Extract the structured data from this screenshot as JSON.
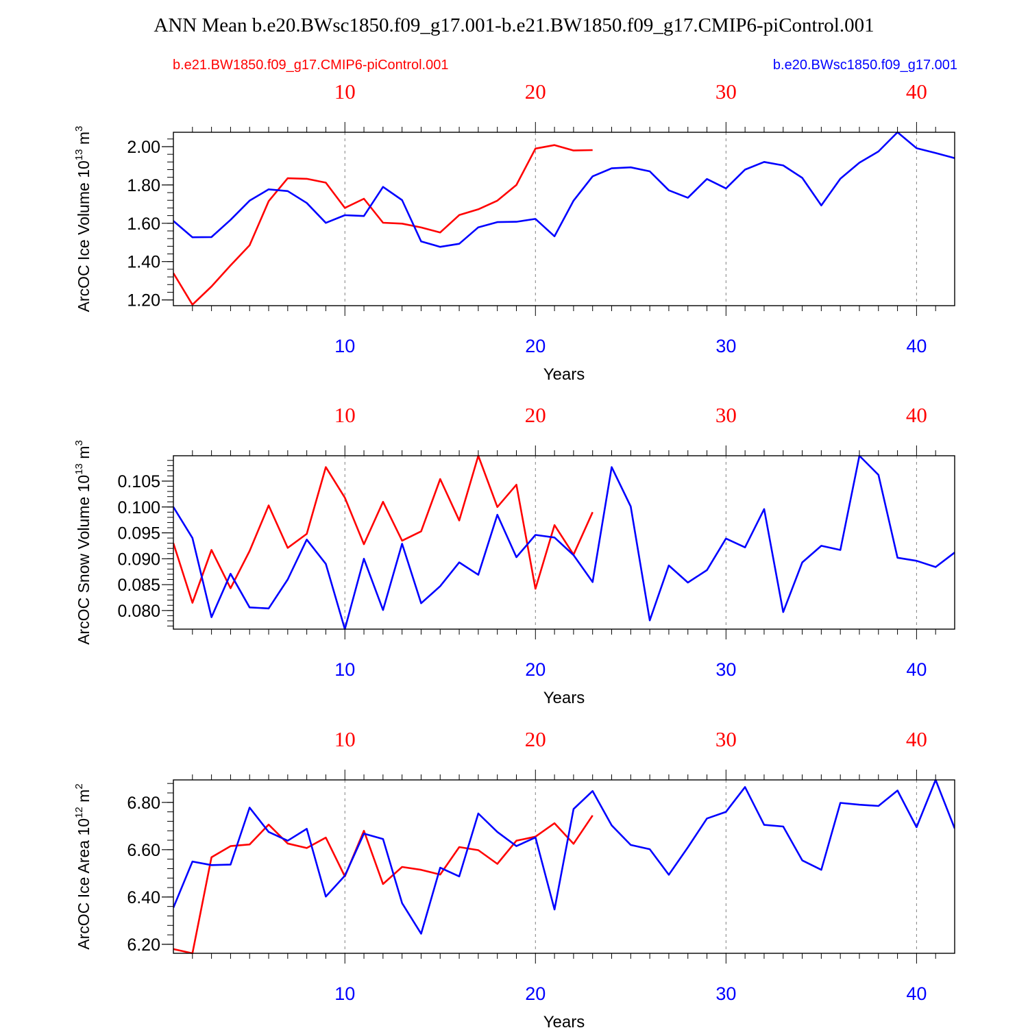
{
  "figure": {
    "title": "ANN Mean b.e20.BWsc1850.f09_g17.001-b.e21.BW1850.f09_g17.CMIP6-piControl.001",
    "legend_left": "b.e21.BW1850.f09_g17.CMIP6-piControl.001",
    "legend_right": "b.e20.BWsc1850.f09_g17.001",
    "colors": {
      "control": "#ff0000",
      "test": "#0000ff",
      "axis": "#000000",
      "grid": "#808080"
    }
  },
  "chart_data": [
    {
      "type": "line",
      "ylabel": "ArcOC Ice Volume",
      "yunit_base": "10",
      "yunit_exp": "13",
      "yunit_suffix": "m",
      "yunit_suffix_exp": "3",
      "xlabel": "Years",
      "xlim": [
        1,
        42
      ],
      "ylim": [
        1.17,
        2.075
      ],
      "yticks": [
        1.2,
        1.4,
        1.6,
        1.8,
        2.0
      ],
      "ytick_labels": [
        "1.20",
        "1.40",
        "1.60",
        "1.80",
        "2.00"
      ],
      "yminor": 0.04,
      "xticks_top": [
        "10",
        "20",
        "30",
        "40"
      ],
      "xticks_bottom": [
        "10",
        "20",
        "30",
        "40"
      ],
      "series": [
        {
          "name": "b.e21.BW1850.f09_g17.CMIP6-piControl.001",
          "color": "#ff0000",
          "values": [
            1.34,
            1.175,
            1.27,
            1.38,
            1.485,
            1.715,
            1.835,
            1.832,
            1.812,
            1.68,
            1.728,
            1.603,
            1.598,
            1.578,
            1.552,
            1.643,
            1.673,
            1.718,
            1.8,
            1.99,
            2.008,
            1.98,
            1.982
          ]
        },
        {
          "name": "b.e20.BWsc1850.f09_g17.001",
          "color": "#0000ff",
          "values": [
            1.612,
            1.527,
            1.528,
            1.618,
            1.718,
            1.777,
            1.768,
            1.706,
            1.602,
            1.642,
            1.638,
            1.79,
            1.721,
            1.505,
            1.477,
            1.493,
            1.579,
            1.606,
            1.608,
            1.623,
            1.532,
            1.718,
            1.845,
            1.887,
            1.892,
            1.871,
            1.772,
            1.733,
            1.831,
            1.782,
            1.88,
            1.92,
            1.902,
            1.837,
            1.693,
            1.833,
            1.916,
            1.975,
            2.075,
            1.992,
            1.967,
            1.94
          ]
        }
      ]
    },
    {
      "type": "line",
      "ylabel": "ArcOC Snow Volume",
      "yunit_base": "10",
      "yunit_exp": "13",
      "yunit_suffix": "m",
      "yunit_suffix_exp": "3",
      "xlabel": "Years",
      "xlim": [
        1,
        42
      ],
      "ylim": [
        0.0764,
        0.1099
      ],
      "yticks": [
        0.08,
        0.085,
        0.09,
        0.095,
        0.1,
        0.105
      ],
      "ytick_labels": [
        "0.080",
        "0.085",
        "0.090",
        "0.095",
        "0.100",
        "0.105"
      ],
      "yminor": 0.001,
      "xticks_top": [
        "10",
        "20",
        "30",
        "40"
      ],
      "xticks_bottom": [
        "10",
        "20",
        "30",
        "40"
      ],
      "series": [
        {
          "name": "b.e21.BW1850.f09_g17.CMIP6-piControl.001",
          "color": "#ff0000",
          "values": [
            0.093,
            0.0815,
            0.0917,
            0.0843,
            0.0915,
            0.1003,
            0.0921,
            0.0948,
            0.1077,
            0.1018,
            0.0928,
            0.101,
            0.0935,
            0.0953,
            0.1054,
            0.0974,
            0.1099,
            0.1,
            0.1043,
            0.0842,
            0.0965,
            0.0908,
            0.099
          ]
        },
        {
          "name": "b.e20.BWsc1850.f09_g17.001",
          "color": "#0000ff",
          "values": [
            0.1,
            0.094,
            0.0787,
            0.0871,
            0.0806,
            0.0804,
            0.086,
            0.0937,
            0.089,
            0.0764,
            0.09,
            0.0801,
            0.0929,
            0.0814,
            0.0847,
            0.0893,
            0.0869,
            0.0985,
            0.0903,
            0.0946,
            0.0941,
            0.0907,
            0.0855,
            0.1077,
            0.1001,
            0.0781,
            0.0887,
            0.0854,
            0.0878,
            0.0939,
            0.0922,
            0.0996,
            0.0797,
            0.0893,
            0.0925,
            0.0917,
            0.1099,
            0.1062,
            0.0902,
            0.0896,
            0.0884,
            0.0912
          ]
        }
      ]
    },
    {
      "type": "line",
      "ylabel": "ArcOC Ice Area",
      "yunit_base": "10",
      "yunit_exp": "12",
      "yunit_suffix": "m",
      "yunit_suffix_exp": "2",
      "xlabel": "Years",
      "xlim": [
        1,
        42
      ],
      "ylim": [
        6.162,
        6.895
      ],
      "yticks": [
        6.2,
        6.4,
        6.6,
        6.8
      ],
      "ytick_labels": [
        "6.20",
        "6.40",
        "6.60",
        "6.80"
      ],
      "yminor": 0.04,
      "xticks_top": [
        "10",
        "20",
        "30",
        "40"
      ],
      "xticks_bottom": [
        "10",
        "20",
        "30",
        "40"
      ],
      "series": [
        {
          "name": "b.e21.BW1850.f09_g17.CMIP6-piControl.001",
          "color": "#ff0000",
          "values": [
            6.18,
            6.162,
            6.568,
            6.615,
            6.622,
            6.706,
            6.626,
            6.607,
            6.651,
            6.487,
            6.68,
            6.455,
            6.527,
            6.515,
            6.495,
            6.611,
            6.598,
            6.54,
            6.638,
            6.655,
            6.712,
            6.625,
            6.745
          ]
        },
        {
          "name": "b.e20.BWsc1850.f09_g17.001",
          "color": "#0000ff",
          "values": [
            6.355,
            6.55,
            6.535,
            6.537,
            6.778,
            6.675,
            6.638,
            6.688,
            6.402,
            6.49,
            6.668,
            6.645,
            6.374,
            6.245,
            6.524,
            6.487,
            6.753,
            6.675,
            6.615,
            6.652,
            6.347,
            6.772,
            6.848,
            6.703,
            6.62,
            6.602,
            6.494,
            6.61,
            6.732,
            6.76,
            6.865,
            6.705,
            6.698,
            6.555,
            6.515,
            6.798,
            6.79,
            6.785,
            6.85,
            6.695,
            6.895,
            6.69
          ]
        }
      ]
    }
  ]
}
